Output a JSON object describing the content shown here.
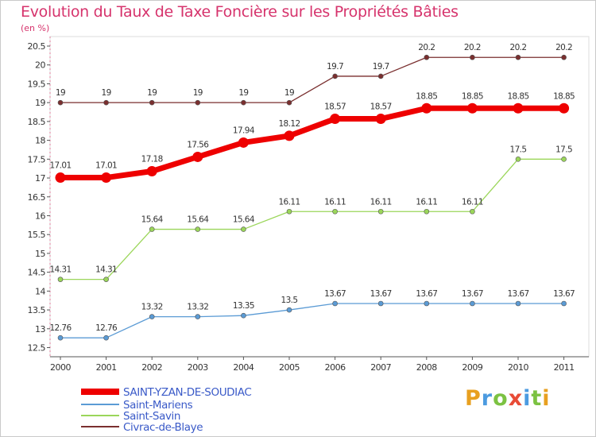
{
  "chart_data": {
    "type": "line",
    "title": "Evolution du Taux de Taxe Foncière sur les Propriétés Bâties",
    "ylabel": "(en %)",
    "xlabel": "",
    "ylim": [
      12.5,
      20.5
    ],
    "yticks": [
      "12.5",
      "13",
      "13.5",
      "14",
      "14.5",
      "15",
      "15.5",
      "16",
      "16.5",
      "17",
      "17.5",
      "18",
      "18.5",
      "19",
      "19.5",
      "20",
      "20.5"
    ],
    "categories": [
      "2000",
      "2001",
      "2002",
      "2003",
      "2004",
      "2005",
      "2006",
      "2007",
      "2008",
      "2009",
      "2010",
      "2011"
    ],
    "series": [
      {
        "name": "SAINT-YZAN-DE-SOUDIAC",
        "color": "#ee0000",
        "values": [
          17.01,
          17.01,
          17.18,
          17.56,
          17.94,
          18.12,
          18.57,
          18.57,
          18.85,
          18.85,
          18.85,
          18.85
        ],
        "labels": [
          "17.01",
          "17.01",
          "17.18",
          "17.56",
          "17.94",
          "18.12",
          "18.57",
          "18.57",
          "18.85",
          "18.85",
          "18.85",
          "18.85"
        ]
      },
      {
        "name": "Saint-Mariens",
        "color": "#5b9bd5",
        "values": [
          12.76,
          12.76,
          13.32,
          13.32,
          13.35,
          13.5,
          13.67,
          13.67,
          13.67,
          13.67,
          13.67,
          13.67
        ],
        "labels": [
          "12.76",
          "12.76",
          "13.32",
          "13.32",
          "13.35",
          "13.5",
          "13.67",
          "13.67",
          "13.67",
          "13.67",
          "13.67",
          "13.67"
        ]
      },
      {
        "name": "Saint-Savin",
        "color": "#9bd65a",
        "values": [
          14.31,
          14.31,
          15.64,
          15.64,
          15.64,
          16.11,
          16.11,
          16.11,
          16.11,
          16.11,
          17.5,
          17.5
        ],
        "labels": [
          "14.31",
          "14.31",
          "15.64",
          "15.64",
          "15.64",
          "16.11",
          "16.11",
          "16.11",
          "16.11",
          "16.11",
          "17.5",
          "17.5"
        ]
      },
      {
        "name": "Civrac-de-Blaye",
        "color": "#7a2f2f",
        "values": [
          19,
          19,
          19,
          19,
          19,
          19,
          19.7,
          19.7,
          20.2,
          20.2,
          20.2,
          20.2
        ],
        "labels": [
          "19",
          "19",
          "19",
          "19",
          "19",
          "19",
          "19.7",
          "19.7",
          "20.2",
          "20.2",
          "20.2",
          "20.2"
        ]
      }
    ],
    "legend_position": "bottom-left",
    "grid": false
  },
  "logo": {
    "letters": [
      "P",
      "r",
      "o",
      "x",
      "i",
      "t",
      "i"
    ]
  }
}
